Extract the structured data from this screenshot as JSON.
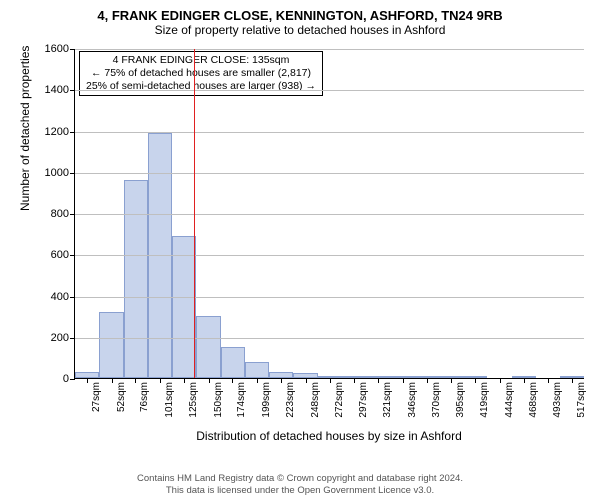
{
  "titles": {
    "line1": "4, FRANK EDINGER CLOSE, KENNINGTON, ASHFORD, TN24 9RB",
    "line2": "Size of property relative to detached houses in Ashford"
  },
  "ylabel": "Number of detached properties",
  "xlabel": "Distribution of detached houses by size in Ashford",
  "footer": {
    "line1": "Contains HM Land Registry data © Crown copyright and database right 2024.",
    "line2": "This data is licensed under the Open Government Licence v3.0."
  },
  "annotation": {
    "line1": "4 FRANK EDINGER CLOSE: 135sqm",
    "line2": "← 75% of detached houses are smaller (2,817)",
    "line3": "25% of semi-detached houses are larger (938) →"
  },
  "chart": {
    "type": "histogram",
    "ylim": [
      0,
      1600
    ],
    "ytick_step": 200,
    "yticks": [
      0,
      200,
      400,
      600,
      800,
      1000,
      1200,
      1400,
      1600
    ],
    "xlim_sqm": [
      15,
      530
    ],
    "bar_width_sqm": 24.5,
    "marker_sqm": 135,
    "bar_color": "#c8d4ec",
    "bar_border_color": "#8aa0d0",
    "marker_color": "#e02020",
    "grid_color": "#bfbfbf",
    "background_color": "#ffffff",
    "title_fontsize": 13,
    "subtitle_fontsize": 12,
    "label_fontsize": 12,
    "tick_fontsize": 11,
    "xtick_fontsize": 10,
    "xticks_sqm": [
      27,
      52,
      76,
      101,
      125,
      150,
      174,
      199,
      223,
      248,
      272,
      297,
      321,
      346,
      370,
      395,
      419,
      444,
      468,
      493,
      517
    ],
    "xtick_suffix": "sqm",
    "bars": [
      {
        "start_sqm": 15,
        "count": 30
      },
      {
        "start_sqm": 39.5,
        "count": 320
      },
      {
        "start_sqm": 64,
        "count": 960
      },
      {
        "start_sqm": 88.5,
        "count": 1190
      },
      {
        "start_sqm": 113,
        "count": 690
      },
      {
        "start_sqm": 137.5,
        "count": 300
      },
      {
        "start_sqm": 162,
        "count": 150
      },
      {
        "start_sqm": 186.5,
        "count": 80
      },
      {
        "start_sqm": 211,
        "count": 30
      },
      {
        "start_sqm": 235.5,
        "count": 25
      },
      {
        "start_sqm": 260,
        "count": 10
      },
      {
        "start_sqm": 284.5,
        "count": 12
      },
      {
        "start_sqm": 309,
        "count": 8
      },
      {
        "start_sqm": 333.5,
        "count": 3
      },
      {
        "start_sqm": 358,
        "count": 12
      },
      {
        "start_sqm": 382.5,
        "count": 2
      },
      {
        "start_sqm": 407,
        "count": 2
      },
      {
        "start_sqm": 431.5,
        "count": 0
      },
      {
        "start_sqm": 456,
        "count": 2
      },
      {
        "start_sqm": 480.5,
        "count": 0
      },
      {
        "start_sqm": 505,
        "count": 4
      }
    ]
  }
}
